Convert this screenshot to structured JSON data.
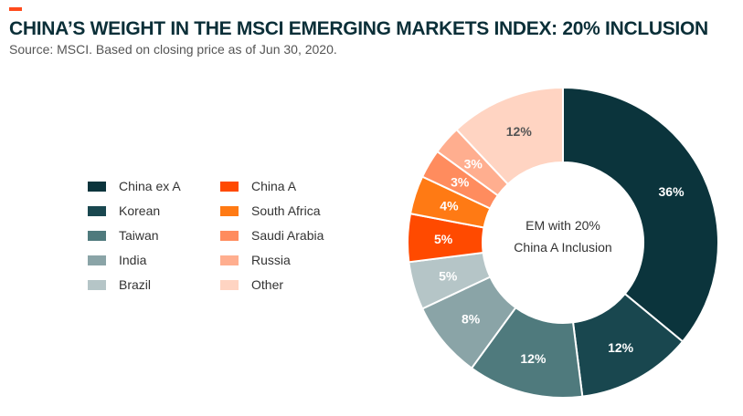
{
  "header": {
    "title": "CHINA’S WEIGHT IN THE MSCI EMERGING MARKETS INDEX: 20% INCLUSION",
    "subtitle": "Source: MSCI. Based on closing price as of Jun 30, 2020.",
    "accent_color": "#ff4a1c"
  },
  "chart_data": {
    "type": "pie",
    "donut": true,
    "center_label": [
      "EM with 20%",
      "China A Inclusion"
    ],
    "legend_placement": "left",
    "slices": [
      {
        "label": "China ex A",
        "value": 36,
        "display": "36%",
        "color": "#0b343c",
        "text_color": "#ffffff"
      },
      {
        "label": "Korean",
        "value": 12,
        "display": "12%",
        "color": "#19474f",
        "text_color": "#ffffff"
      },
      {
        "label": "Taiwan",
        "value": 12,
        "display": "12%",
        "color": "#4f7a7d",
        "text_color": "#ffffff"
      },
      {
        "label": "India",
        "value": 8,
        "display": "8%",
        "color": "#8aa4a7",
        "text_color": "#ffffff"
      },
      {
        "label": "Brazil",
        "value": 5,
        "display": "5%",
        "color": "#b5c5c7",
        "text_color": "#ffffff"
      },
      {
        "label": "China A",
        "value": 5,
        "display": "5%",
        "color": "#ff4a00",
        "text_color": "#ffffff"
      },
      {
        "label": "South Africa",
        "value": 4,
        "display": "4%",
        "color": "#ff7a14",
        "text_color": "#ffffff"
      },
      {
        "label": "Saudi Arabia",
        "value": 3,
        "display": "3%",
        "color": "#ff8c5e",
        "text_color": "#ffffff"
      },
      {
        "label": "Russia",
        "value": 3,
        "display": "3%",
        "color": "#ffae8f",
        "text_color": "#ffffff"
      },
      {
        "label": "Other",
        "value": 12,
        "display": "12%",
        "color": "#ffd4c2",
        "text_color": "#555555"
      }
    ]
  }
}
